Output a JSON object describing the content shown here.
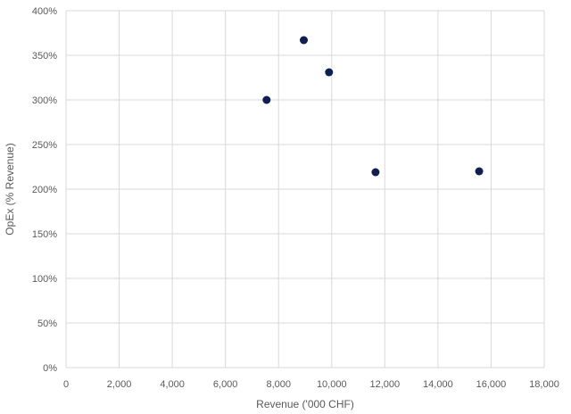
{
  "chart_data": {
    "type": "scatter",
    "xlabel": "Revenue ('000 CHF)",
    "ylabel": "OpEx (% Revenue)",
    "xlim": [
      0,
      18000
    ],
    "ylim": [
      0,
      4
    ],
    "x_ticks": [
      0,
      2000,
      4000,
      6000,
      8000,
      10000,
      12000,
      14000,
      16000,
      18000
    ],
    "x_tick_labels": [
      "0",
      "2,000",
      "4,000",
      "6,000",
      "8,000",
      "10,000",
      "12,000",
      "14,000",
      "16,000",
      "18,000"
    ],
    "y_ticks": [
      0,
      0.5,
      1,
      1.5,
      2,
      2.5,
      3,
      3.5,
      4
    ],
    "y_tick_labels": [
      "0%",
      "50%",
      "100%",
      "150%",
      "200%",
      "250%",
      "300%",
      "350%",
      "400%"
    ],
    "grid": true,
    "legend": "none",
    "marker_color": "#0f1f4f",
    "series": [
      {
        "points": [
          {
            "x": 7550,
            "y": 3.0
          },
          {
            "x": 8950,
            "y": 3.67
          },
          {
            "x": 9900,
            "y": 3.31
          },
          {
            "x": 11650,
            "y": 2.19
          },
          {
            "x": 15550,
            "y": 2.2
          }
        ]
      }
    ]
  }
}
